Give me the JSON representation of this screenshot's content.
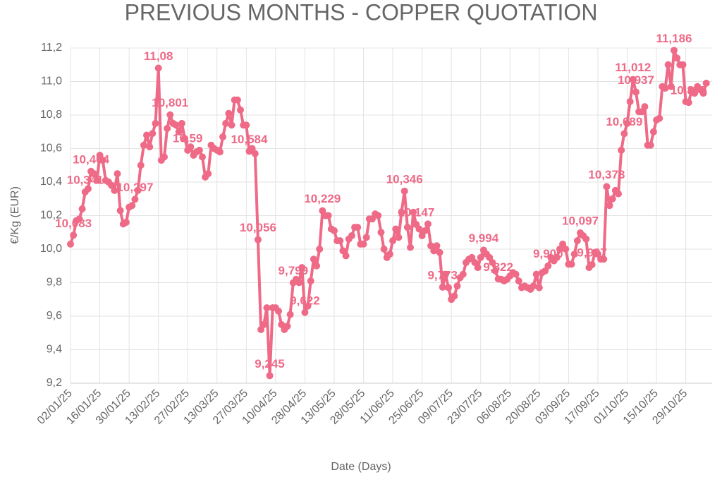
{
  "chart_data": {
    "type": "line",
    "title": "PREVIOUS MONTHS - COPPER QUOTATION",
    "xlabel": "Date (Days)",
    "ylabel": "€/Kg (EUR)",
    "color": "#ee6a87",
    "grid": true,
    "ylim": [
      9.2,
      11.2
    ],
    "yticks": [
      {
        "value": 9.2,
        "label": "9,2"
      },
      {
        "value": 9.4,
        "label": "9,4"
      },
      {
        "value": 9.6,
        "label": "9,6"
      },
      {
        "value": 9.8,
        "label": "9,8"
      },
      {
        "value": 10.0,
        "label": "10,0"
      },
      {
        "value": 10.2,
        "label": "10,2"
      },
      {
        "value": 10.4,
        "label": "10,4"
      },
      {
        "value": 10.6,
        "label": "10,6"
      },
      {
        "value": 10.8,
        "label": "10,8"
      },
      {
        "value": 11.0,
        "label": "11,0"
      },
      {
        "value": 11.2,
        "label": "11,2"
      }
    ],
    "xticks": [
      "02/01/25",
      "16/01/25",
      "30/01/25",
      "13/02/25",
      "27/02/25",
      "13/03/25",
      "27/03/25",
      "10/04/25",
      "28/04/25",
      "13/05/25",
      "28/05/25",
      "11/06/25",
      "25/06/25",
      "09/07/25",
      "23/07/25",
      "06/08/25",
      "20/08/25",
      "03/09/25",
      "17/09/25",
      "01/10/25",
      "15/10/25",
      "29/10/25"
    ],
    "x": [
      "02/01/25",
      "03/01/25",
      "06/01/25",
      "07/01/25",
      "08/01/25",
      "09/01/25",
      "10/01/25",
      "13/01/25",
      "14/01/25",
      "15/01/25",
      "16/01/25",
      "17/01/25",
      "20/01/25",
      "21/01/25",
      "22/01/25",
      "23/01/25",
      "24/01/25",
      "27/01/25",
      "28/01/25",
      "29/01/25",
      "30/01/25",
      "31/01/25",
      "03/02/25",
      "04/02/25",
      "05/02/25",
      "06/02/25",
      "07/02/25",
      "10/02/25",
      "11/02/25",
      "12/02/25",
      "13/02/25",
      "14/02/25",
      "17/02/25",
      "18/02/25",
      "19/02/25",
      "20/02/25",
      "21/02/25",
      "24/02/25",
      "25/02/25",
      "26/02/25",
      "27/02/25",
      "28/02/25",
      "03/03/25",
      "04/03/25",
      "05/03/25",
      "06/03/25",
      "07/03/25",
      "10/03/25",
      "11/03/25",
      "12/03/25",
      "13/03/25",
      "14/03/25",
      "17/03/25",
      "18/03/25",
      "19/03/25",
      "20/03/25",
      "21/03/25",
      "24/03/25",
      "25/03/25",
      "26/03/25",
      "27/03/25",
      "28/03/25",
      "31/03/25",
      "01/04/25",
      "02/04/25",
      "03/04/25",
      "04/04/25",
      "07/04/25",
      "08/04/25",
      "09/04/25",
      "10/04/25",
      "11/04/25",
      "14/04/25",
      "15/04/25",
      "16/04/25",
      "17/04/25",
      "22/04/25",
      "23/04/25",
      "24/04/25",
      "25/04/25",
      "28/04/25",
      "29/04/25",
      "30/04/25",
      "02/05/25",
      "05/05/25",
      "06/05/25",
      "07/05/25",
      "08/05/25",
      "09/05/25",
      "12/05/25",
      "13/05/25",
      "14/05/25",
      "15/05/25",
      "16/05/25",
      "19/05/25",
      "20/05/25",
      "21/05/25",
      "22/05/25",
      "23/05/25",
      "27/05/25",
      "28/05/25",
      "29/05/25",
      "30/05/25",
      "02/06/25",
      "03/06/25",
      "04/06/25",
      "05/06/25",
      "06/06/25",
      "09/06/25",
      "10/06/25",
      "11/06/25",
      "12/06/25",
      "13/06/25",
      "16/06/25",
      "17/06/25",
      "18/06/25",
      "19/06/25",
      "20/06/25",
      "23/06/25",
      "24/06/25",
      "25/06/25",
      "26/06/25",
      "27/06/25",
      "30/06/25",
      "01/07/25",
      "02/07/25",
      "03/07/25",
      "04/07/25",
      "07/07/25",
      "08/07/25",
      "09/07/25",
      "10/07/25",
      "11/07/25",
      "14/07/25",
      "15/07/25",
      "16/07/25",
      "17/07/25",
      "18/07/25",
      "21/07/25",
      "22/07/25",
      "23/07/25",
      "24/07/25",
      "25/07/25",
      "28/07/25",
      "29/07/25",
      "30/07/25",
      "31/07/25",
      "01/08/25",
      "04/08/25",
      "05/08/25",
      "06/08/25",
      "07/08/25",
      "08/08/25",
      "11/08/25",
      "12/08/25",
      "13/08/25",
      "14/08/25",
      "15/08/25",
      "18/08/25",
      "19/08/25",
      "20/08/25",
      "21/08/25",
      "22/08/25",
      "25/08/25",
      "26/08/25",
      "27/08/25",
      "28/08/25",
      "29/08/25",
      "01/09/25",
      "02/09/25",
      "03/09/25",
      "04/09/25",
      "05/09/25",
      "08/09/25",
      "09/09/25",
      "10/09/25",
      "11/09/25",
      "12/09/25",
      "15/09/25",
      "16/09/25",
      "17/09/25",
      "18/09/25",
      "19/09/25",
      "22/09/25",
      "23/09/25",
      "24/09/25",
      "25/09/25",
      "26/09/25",
      "29/09/25",
      "30/09/25",
      "01/10/25",
      "02/10/25",
      "03/10/25",
      "06/10/25",
      "07/10/25",
      "08/10/25",
      "09/10/25",
      "10/10/25",
      "13/10/25",
      "14/10/25",
      "15/10/25",
      "16/10/25",
      "17/10/25",
      "20/10/25",
      "21/10/25",
      "22/10/25",
      "23/10/25",
      "24/10/25",
      "27/10/25",
      "28/10/25",
      "29/10/25",
      "30/10/25",
      "31/10/25",
      "03/11/25",
      "04/11/25",
      "05/11/25",
      "06/11/25",
      "07/11/25"
    ],
    "values": [
      10.03,
      10.083,
      10.17,
      10.18,
      10.24,
      10.341,
      10.36,
      10.464,
      10.45,
      10.41,
      10.56,
      10.53,
      10.41,
      10.4,
      10.38,
      10.35,
      10.45,
      10.23,
      10.15,
      10.16,
      10.25,
      10.26,
      10.297,
      10.35,
      10.5,
      10.62,
      10.68,
      10.61,
      10.69,
      10.75,
      11.08,
      10.53,
      10.55,
      10.72,
      10.801,
      10.75,
      10.74,
      10.7,
      10.75,
      10.66,
      10.59,
      10.61,
      10.56,
      10.58,
      10.59,
      10.55,
      10.43,
      10.45,
      10.62,
      10.6,
      10.59,
      10.58,
      10.67,
      10.75,
      10.81,
      10.74,
      10.89,
      10.89,
      10.83,
      10.74,
      10.74,
      10.584,
      10.6,
      10.57,
      10.056,
      9.52,
      9.55,
      9.65,
      9.245,
      9.65,
      9.65,
      9.63,
      9.55,
      9.52,
      9.54,
      9.61,
      9.799,
      9.82,
      9.8,
      9.89,
      9.622,
      9.66,
      9.81,
      9.94,
      9.9,
      10.0,
      10.229,
      10.2,
      10.2,
      10.12,
      10.11,
      10.05,
      10.05,
      9.99,
      9.96,
      10.06,
      10.08,
      10.13,
      10.13,
      10.03,
      10.03,
      10.07,
      10.18,
      10.18,
      10.21,
      10.2,
      10.1,
      10.0,
      9.95,
      9.97,
      10.05,
      10.12,
      10.07,
      10.22,
      10.346,
      10.13,
      10.01,
      10.22,
      10.147,
      10.12,
      10.08,
      10.11,
      10.15,
      10.02,
      9.99,
      10.02,
      9.98,
      9.773,
      9.85,
      9.77,
      9.7,
      9.72,
      9.78,
      9.83,
      9.85,
      9.92,
      9.94,
      9.95,
      9.92,
      9.89,
      9.95,
      9.994,
      9.97,
      9.95,
      9.92,
      9.87,
      9.822,
      9.82,
      9.81,
      9.82,
      9.84,
      9.86,
      9.85,
      9.81,
      9.77,
      9.78,
      9.77,
      9.76,
      9.78,
      9.85,
      9.77,
      9.86,
      9.87,
      9.9,
      9.95,
      9.93,
      9.95,
      10.0,
      10.03,
      10.0,
      9.91,
      9.91,
      9.97,
      10.05,
      10.097,
      10.08,
      10.06,
      9.89,
      9.907,
      9.98,
      9.97,
      9.94,
      9.94,
      10.373,
      10.26,
      10.3,
      10.35,
      10.33,
      10.59,
      10.689,
      10.75,
      10.88,
      11.012,
      10.937,
      10.82,
      10.82,
      10.85,
      10.62,
      10.62,
      10.7,
      10.77,
      10.78,
      10.97,
      10.96,
      11.1,
      10.97,
      11.186,
      11.14,
      11.1,
      11.1,
      10.88,
      10.875,
      10.95,
      10.93,
      10.97,
      10.95,
      10.93,
      10.99
    ],
    "value_labels": [
      null,
      "10,083",
      null,
      null,
      null,
      "10,341",
      null,
      "10,464",
      null,
      null,
      null,
      null,
      null,
      null,
      null,
      null,
      null,
      null,
      null,
      null,
      null,
      null,
      "10,297",
      null,
      null,
      null,
      null,
      null,
      null,
      null,
      "11,08",
      null,
      null,
      null,
      "10,801",
      null,
      null,
      null,
      null,
      null,
      "10,59",
      null,
      null,
      null,
      null,
      null,
      null,
      null,
      null,
      null,
      null,
      null,
      null,
      null,
      null,
      null,
      null,
      null,
      null,
      null,
      null,
      "10,584",
      null,
      null,
      "10,056",
      null,
      null,
      null,
      "9,245",
      null,
      null,
      null,
      null,
      null,
      null,
      null,
      "9,799",
      null,
      null,
      null,
      "9,622",
      null,
      null,
      null,
      null,
      null,
      "10,229",
      null,
      null,
      null,
      null,
      null,
      null,
      null,
      null,
      null,
      null,
      null,
      null,
      null,
      null,
      null,
      null,
      null,
      null,
      null,
      null,
      null,
      null,
      null,
      null,
      null,
      null,
      null,
      "10,346",
      null,
      null,
      null,
      "10,147",
      null,
      null,
      null,
      null,
      null,
      null,
      null,
      null,
      "9,773",
      null,
      null,
      null,
      null,
      null,
      null,
      null,
      null,
      null,
      null,
      null,
      null,
      null,
      "9,994",
      null,
      null,
      null,
      null,
      "9,822",
      null,
      null,
      null,
      null,
      null,
      null,
      null,
      null,
      null,
      null,
      null,
      null,
      null,
      null,
      null,
      null,
      "9,900",
      null,
      null,
      null,
      null,
      null,
      null,
      null,
      null,
      null,
      null,
      "10,097",
      null,
      null,
      null,
      "9,907",
      null,
      null,
      null,
      null,
      "10,373",
      null,
      null,
      null,
      null,
      null,
      "10,689",
      null,
      null,
      "11,012",
      "10,937",
      null,
      null,
      null,
      null,
      null,
      null,
      null,
      null,
      null,
      null,
      null,
      null,
      "11,186",
      null,
      null,
      null,
      null,
      "10,875",
      null,
      null,
      null,
      null,
      null,
      null
    ]
  }
}
